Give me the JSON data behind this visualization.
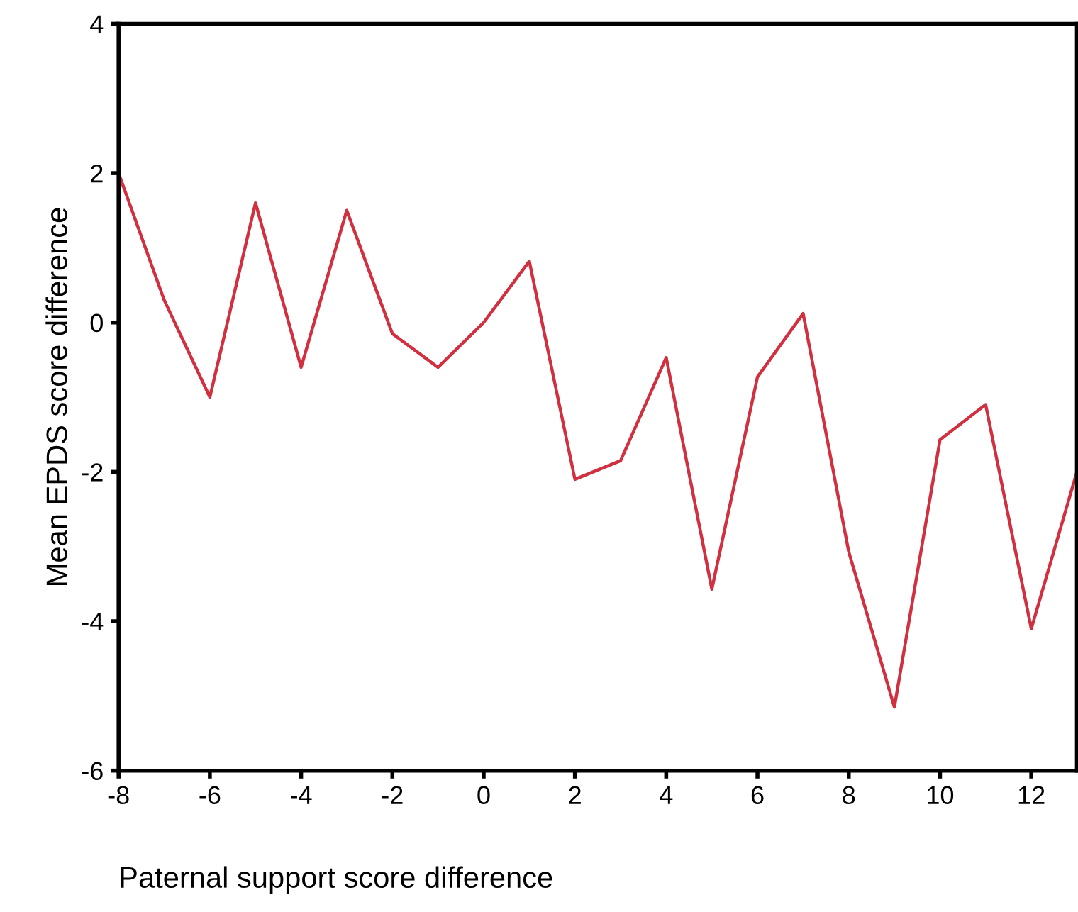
{
  "chart_data": {
    "type": "line",
    "xlabel": "Paternal support score difference",
    "ylabel": "Mean EPDS score difference",
    "x": [
      -8,
      -7,
      -6,
      -5,
      -4,
      -3,
      -2,
      -1,
      0,
      1,
      2,
      3,
      4,
      5,
      6,
      7,
      8,
      9,
      10,
      11,
      12,
      13
    ],
    "series": [
      {
        "color": "#d0303f",
        "values": [
          2.0,
          0.3,
          -1.0,
          1.6,
          -0.6,
          1.5,
          -0.15,
          -0.6,
          0.0,
          0.82,
          -2.1,
          -1.85,
          -0.47,
          -3.57,
          -0.73,
          0.12,
          -3.07,
          -5.15,
          -1.57,
          -1.1,
          -4.1,
          -2.0
        ]
      }
    ],
    "xlim": [
      -8,
      13
    ],
    "xticks": [
      -8,
      -6,
      -4,
      -2,
      0,
      2,
      4,
      6,
      8,
      10,
      12
    ],
    "ylim": [
      -6,
      4
    ],
    "yticks": [
      -6,
      -4,
      -2,
      0,
      2,
      4
    ],
    "grid": false,
    "legend": false,
    "marker": "none",
    "line_style": "solid"
  }
}
